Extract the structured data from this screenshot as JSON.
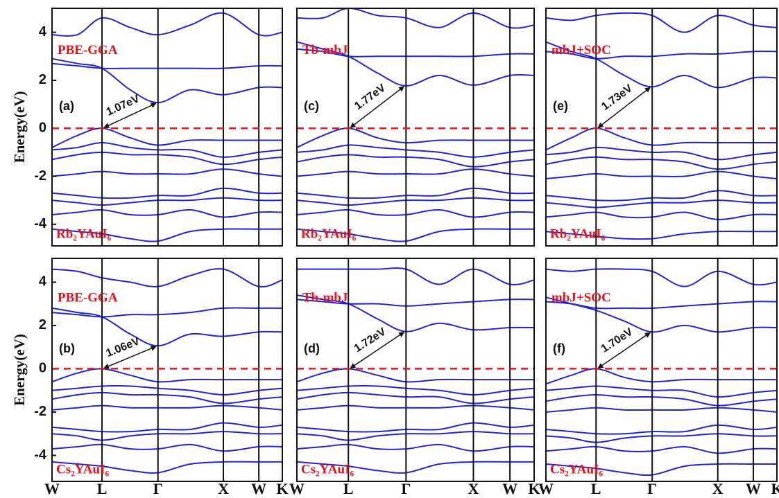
{
  "chart_data": [
    {
      "type": "line",
      "panel_label": "(a)",
      "method": "PBE-GGA",
      "compound": "Rb₂YAuI₆",
      "ylabel": "Energy(eV)",
      "gap": {
        "label": "1.07eV",
        "x0": 0.217,
        "y0": 0,
        "x1": 0.46,
        "y1": 1.07
      },
      "xlim": [
        0,
        1
      ],
      "ylim": [
        -4.9,
        5.0
      ],
      "yticks": [
        -4,
        -2,
        0,
        2,
        4
      ],
      "kpoints": [
        0.217,
        0.46,
        0.744,
        0.898
      ],
      "reference_line": {
        "value": 0,
        "color": "#e8121b"
      },
      "color": "#2323d6",
      "x": [
        0,
        0.11,
        0.217,
        0.34,
        0.46,
        0.6,
        0.744,
        0.898,
        1
      ],
      "series": [
        {
          "values": [
            2.9,
            2.7,
            2.5,
            1.6,
            1.07,
            1.6,
            1.4,
            1.7,
            1.7
          ]
        },
        {
          "values": [
            2.7,
            2.6,
            2.5,
            2.5,
            2.5,
            2.5,
            2.5,
            2.6,
            2.6
          ]
        },
        {
          "values": [
            3.9,
            3.9,
            4.6,
            4.2,
            3.9,
            4.3,
            4.8,
            3.9,
            4.0
          ]
        },
        {
          "values": [
            -0.8,
            -0.3,
            0,
            -0.4,
            -0.7,
            -0.5,
            -0.5,
            -0.5,
            -0.5
          ]
        },
        {
          "values": [
            -0.9,
            -0.8,
            -0.6,
            -0.8,
            -0.9,
            -0.9,
            -1.2,
            -1.0,
            -0.9
          ]
        },
        {
          "values": [
            -1.3,
            -1.1,
            -1.0,
            -1.1,
            -1.1,
            -1.2,
            -1.5,
            -1.3,
            -1.2
          ]
        },
        {
          "values": [
            -2.0,
            -1.9,
            -1.8,
            -1.9,
            -1.9,
            -1.9,
            -1.7,
            -1.9,
            -2.0
          ]
        },
        {
          "values": [
            -2.7,
            -2.8,
            -2.9,
            -2.9,
            -2.8,
            -2.8,
            -2.5,
            -2.7,
            -2.7
          ]
        },
        {
          "values": [
            -3.0,
            -3.1,
            -3.2,
            -3.1,
            -3.0,
            -3.0,
            -2.9,
            -3.0,
            -3.0
          ]
        },
        {
          "values": [
            -3.6,
            -3.5,
            -3.4,
            -3.6,
            -3.6,
            -3.4,
            -3.7,
            -3.5,
            -3.5
          ]
        },
        {
          "values": [
            -4.2,
            -4.3,
            -4.4,
            -4.6,
            -4.7,
            -4.3,
            -4.2,
            -4.2,
            -4.2
          ]
        }
      ]
    },
    {
      "type": "line",
      "panel_label": "(b)",
      "method": "PBE-GGA",
      "compound": "Cs₂YAuI₆",
      "ylabel": "Energy(eV)",
      "gap": {
        "label": "1.06eV",
        "x0": 0.217,
        "y0": 0,
        "x1": 0.46,
        "y1": 1.06
      },
      "xlim": [
        0,
        1
      ],
      "ylim": [
        -5.2,
        5.1
      ],
      "yticks": [
        -4,
        -2,
        0,
        2,
        4
      ],
      "xticks": [
        {
          "value": 0,
          "label": "W"
        },
        {
          "value": 0.217,
          "label": "L"
        },
        {
          "value": 0.46,
          "label": "Γ"
        },
        {
          "value": 0.744,
          "label": "X"
        },
        {
          "value": 0.898,
          "label": "W"
        },
        {
          "value": 1,
          "label": "K"
        }
      ],
      "reference_line": {
        "value": 0,
        "color": "#e8121b"
      },
      "color": "#2323d6",
      "x": [
        0,
        0.11,
        0.217,
        0.34,
        0.46,
        0.6,
        0.744,
        0.898,
        1
      ],
      "series": [
        {
          "values": [
            2.8,
            2.6,
            2.4,
            1.6,
            1.06,
            1.6,
            1.5,
            1.7,
            1.7
          ]
        },
        {
          "values": [
            2.6,
            2.5,
            2.4,
            2.5,
            2.5,
            2.6,
            2.8,
            2.8,
            2.8
          ]
        },
        {
          "values": [
            4.6,
            4.5,
            4.2,
            4.0,
            3.8,
            4.3,
            4.6,
            3.8,
            4.1
          ]
        },
        {
          "values": [
            -0.6,
            -0.2,
            0,
            -0.3,
            -0.6,
            -0.5,
            -0.5,
            -0.5,
            -0.5
          ]
        },
        {
          "values": [
            -1.0,
            -0.9,
            -0.8,
            -0.8,
            -0.9,
            -1.0,
            -1.2,
            -1.0,
            -0.9
          ]
        },
        {
          "values": [
            -1.4,
            -1.2,
            -1.1,
            -1.2,
            -1.2,
            -1.3,
            -1.6,
            -1.4,
            -1.3
          ]
        },
        {
          "values": [
            -1.9,
            -1.8,
            -1.7,
            -1.8,
            -1.8,
            -1.8,
            -1.7,
            -1.8,
            -1.9
          ]
        },
        {
          "values": [
            -2.7,
            -2.8,
            -2.9,
            -2.9,
            -2.8,
            -2.8,
            -2.5,
            -2.7,
            -2.6
          ]
        },
        {
          "values": [
            -3.0,
            -3.1,
            -3.3,
            -3.1,
            -3.0,
            -3.0,
            -2.9,
            -3.0,
            -3.0
          ]
        },
        {
          "values": [
            -3.7,
            -3.6,
            -3.5,
            -3.7,
            -3.7,
            -3.5,
            -3.8,
            -3.6,
            -3.6
          ]
        },
        {
          "values": [
            -4.3,
            -4.4,
            -4.5,
            -4.7,
            -4.8,
            -4.4,
            -4.3,
            -4.3,
            -4.3
          ]
        }
      ]
    },
    {
      "type": "line",
      "panel_label": "(c)",
      "method": "Tb-mbJ",
      "compound": "Rb₂YAuI₆",
      "gap": {
        "label": "1.77eV",
        "x0": 0.217,
        "y0": 0,
        "x1": 0.46,
        "y1": 1.77
      },
      "xlim": [
        0,
        1
      ],
      "ylim": [
        -4.9,
        5.0
      ],
      "kpoints": [
        0.217,
        0.46,
        0.744,
        0.898
      ],
      "reference_line": {
        "value": 0,
        "color": "#e8121b"
      },
      "color": "#2323d6",
      "x": [
        0,
        0.11,
        0.217,
        0.34,
        0.46,
        0.6,
        0.744,
        0.898,
        1
      ],
      "series": [
        {
          "values": [
            3.6,
            3.3,
            3.0,
            2.3,
            1.77,
            2.2,
            1.8,
            2.2,
            2.2
          ]
        },
        {
          "values": [
            3.3,
            3.2,
            3.0,
            3.0,
            3.0,
            3.0,
            3.0,
            3.1,
            3.1
          ]
        },
        {
          "values": [
            4.6,
            4.6,
            5.0,
            4.7,
            4.6,
            4.2,
            4.8,
            4.2,
            4.3
          ]
        },
        {
          "values": [
            -0.8,
            -0.3,
            0,
            -0.4,
            -0.6,
            -0.5,
            -0.5,
            -0.5,
            -0.5
          ]
        },
        {
          "values": [
            -1.0,
            -0.9,
            -0.7,
            -0.8,
            -0.9,
            -1.0,
            -1.2,
            -1.0,
            -0.9
          ]
        },
        {
          "values": [
            -1.4,
            -1.2,
            -1.1,
            -1.2,
            -1.2,
            -1.3,
            -1.6,
            -1.4,
            -1.3
          ]
        },
        {
          "values": [
            -2.0,
            -1.9,
            -1.8,
            -1.9,
            -1.9,
            -1.9,
            -1.7,
            -1.9,
            -2.0
          ]
        },
        {
          "values": [
            -2.7,
            -2.8,
            -2.9,
            -2.9,
            -2.8,
            -2.8,
            -2.5,
            -2.7,
            -2.7
          ]
        },
        {
          "values": [
            -3.0,
            -3.1,
            -3.2,
            -3.1,
            -3.0,
            -3.0,
            -2.9,
            -3.0,
            -3.0
          ]
        },
        {
          "values": [
            -3.6,
            -3.5,
            -3.4,
            -3.6,
            -3.6,
            -3.4,
            -3.7,
            -3.5,
            -3.5
          ]
        },
        {
          "values": [
            -4.2,
            -4.3,
            -4.4,
            -4.6,
            -4.7,
            -4.3,
            -4.2,
            -4.2,
            -4.2
          ]
        }
      ]
    },
    {
      "type": "line",
      "panel_label": "(d)",
      "method": "Tb-mbJ",
      "compound": "Cs₂YAuI₆",
      "gap": {
        "label": "1.72eV",
        "x0": 0.217,
        "y0": 0,
        "x1": 0.46,
        "y1": 1.72
      },
      "xlim": [
        0,
        1
      ],
      "ylim": [
        -5.2,
        5.1
      ],
      "xticks": [
        {
          "value": 0,
          "label": "W"
        },
        {
          "value": 0.217,
          "label": "L"
        },
        {
          "value": 0.46,
          "label": "Γ"
        },
        {
          "value": 0.744,
          "label": "X"
        },
        {
          "value": 0.898,
          "label": "W"
        },
        {
          "value": 1,
          "label": "K"
        }
      ],
      "reference_line": {
        "value": 0,
        "color": "#e8121b"
      },
      "color": "#2323d6",
      "x": [
        0,
        0.11,
        0.217,
        0.34,
        0.46,
        0.6,
        0.744,
        0.898,
        1
      ],
      "series": [
        {
          "values": [
            3.4,
            3.2,
            3.0,
            2.3,
            1.72,
            2.1,
            1.8,
            1.9,
            1.9
          ]
        },
        {
          "values": [
            3.2,
            3.1,
            3.0,
            3.0,
            2.9,
            3.0,
            3.1,
            3.2,
            3.2
          ]
        },
        {
          "values": [
            4.6,
            4.6,
            4.6,
            4.6,
            4.6,
            3.9,
            4.6,
            3.9,
            4.1
          ]
        },
        {
          "values": [
            -0.6,
            -0.2,
            0,
            -0.3,
            -0.6,
            -0.5,
            -0.5,
            -0.5,
            -0.5
          ]
        },
        {
          "values": [
            -1.0,
            -0.9,
            -0.8,
            -0.8,
            -0.9,
            -1.0,
            -1.2,
            -1.0,
            -0.9
          ]
        },
        {
          "values": [
            -1.4,
            -1.2,
            -1.1,
            -1.2,
            -1.3,
            -1.3,
            -1.6,
            -1.4,
            -1.3
          ]
        },
        {
          "values": [
            -1.9,
            -1.8,
            -1.7,
            -1.8,
            -1.8,
            -1.8,
            -1.7,
            -1.8,
            -1.9
          ]
        },
        {
          "values": [
            -2.7,
            -2.8,
            -2.9,
            -2.9,
            -2.8,
            -2.8,
            -2.5,
            -2.7,
            -2.6
          ]
        },
        {
          "values": [
            -3.0,
            -3.1,
            -3.3,
            -3.1,
            -3.0,
            -3.0,
            -2.9,
            -3.0,
            -3.0
          ]
        },
        {
          "values": [
            -3.7,
            -3.6,
            -3.5,
            -3.7,
            -3.7,
            -3.5,
            -3.8,
            -3.6,
            -3.6
          ]
        },
        {
          "values": [
            -4.3,
            -4.4,
            -4.5,
            -4.7,
            -4.8,
            -4.4,
            -4.3,
            -4.3,
            -4.3
          ]
        }
      ]
    },
    {
      "type": "line",
      "panel_label": "(e)",
      "method": "mbJ+SOC",
      "compound": "Rb₂YAuI₆",
      "gap": {
        "label": "1.73eV",
        "x0": 0.217,
        "y0": 0,
        "x1": 0.46,
        "y1": 1.73
      },
      "xlim": [
        0,
        1
      ],
      "ylim": [
        -4.9,
        5.0
      ],
      "kpoints": [
        0.217,
        0.46,
        0.744,
        0.898
      ],
      "reference_line": {
        "value": 0,
        "color": "#e8121b"
      },
      "color": "#2323d6",
      "x": [
        0,
        0.11,
        0.217,
        0.34,
        0.46,
        0.6,
        0.744,
        0.898,
        1
      ],
      "series": [
        {
          "values": [
            3.6,
            3.2,
            2.9,
            2.2,
            1.73,
            2.2,
            1.7,
            2.1,
            2.1
          ]
        },
        {
          "values": [
            3.2,
            3.1,
            2.9,
            3.0,
            3.0,
            3.1,
            3.1,
            3.2,
            3.2
          ]
        },
        {
          "values": [
            4.6,
            4.5,
            4.7,
            4.8,
            4.7,
            4.0,
            4.7,
            4.3,
            4.2
          ]
        },
        {
          "values": [
            -0.9,
            -0.4,
            0,
            -0.4,
            -0.7,
            -0.6,
            -0.6,
            -0.6,
            -0.6
          ]
        },
        {
          "values": [
            -1.1,
            -1.0,
            -0.8,
            -0.9,
            -1.0,
            -1.0,
            -1.3,
            -1.1,
            -1.0
          ]
        },
        {
          "values": [
            -1.5,
            -1.3,
            -1.2,
            -1.3,
            -1.3,
            -1.4,
            -1.7,
            -1.5,
            -1.4
          ]
        },
        {
          "values": [
            -2.1,
            -2.0,
            -1.9,
            -2.0,
            -2.0,
            -2.0,
            -1.8,
            -2.0,
            -2.1
          ]
        },
        {
          "values": [
            -2.8,
            -2.9,
            -3.0,
            -3.0,
            -2.9,
            -2.9,
            -2.6,
            -2.8,
            -2.8
          ]
        },
        {
          "values": [
            -3.1,
            -3.2,
            -3.3,
            -3.2,
            -3.1,
            -3.1,
            -3.0,
            -3.1,
            -3.1
          ]
        },
        {
          "values": [
            -3.7,
            -3.6,
            -3.5,
            -3.7,
            -3.7,
            -3.5,
            -3.8,
            -3.6,
            -3.6
          ]
        },
        {
          "values": [
            -4.3,
            -4.4,
            -4.5,
            -4.6,
            -4.6,
            -4.4,
            -4.3,
            -4.3,
            -4.3
          ]
        }
      ]
    },
    {
      "type": "line",
      "panel_label": "(f)",
      "method": "mbJ+SOC",
      "compound": "Cs₂YAuI₆",
      "gap": {
        "label": "1.70eV",
        "x0": 0.217,
        "y0": 0,
        "x1": 0.46,
        "y1": 1.7
      },
      "xlim": [
        0,
        1
      ],
      "ylim": [
        -5.2,
        5.1
      ],
      "xticks": [
        {
          "value": 0,
          "label": "W"
        },
        {
          "value": 0.217,
          "label": "L"
        },
        {
          "value": 0.46,
          "label": "Γ"
        },
        {
          "value": 0.744,
          "label": "X"
        },
        {
          "value": 0.898,
          "label": "W"
        },
        {
          "value": 1,
          "label": "K"
        }
      ],
      "reference_line": {
        "value": 0,
        "color": "#e8121b"
      },
      "color": "#2323d6",
      "x": [
        0,
        0.11,
        0.217,
        0.34,
        0.46,
        0.6,
        0.744,
        0.898,
        1
      ],
      "series": [
        {
          "values": [
            3.3,
            3.0,
            2.7,
            2.2,
            1.7,
            2.0,
            1.7,
            1.9,
            1.9
          ]
        },
        {
          "values": [
            3.1,
            3.0,
            2.8,
            2.8,
            2.8,
            2.9,
            3.0,
            3.1,
            3.1
          ]
        },
        {
          "values": [
            4.6,
            4.5,
            4.6,
            4.6,
            4.5,
            3.8,
            4.5,
            3.9,
            4.0
          ]
        },
        {
          "values": [
            -0.7,
            -0.3,
            0,
            -0.4,
            -0.6,
            -0.5,
            -0.5,
            -0.5,
            -0.5
          ]
        },
        {
          "values": [
            -1.0,
            -0.9,
            -0.8,
            -0.9,
            -1.0,
            -1.0,
            -1.3,
            -1.1,
            -1.0
          ]
        },
        {
          "values": [
            -1.5,
            -1.3,
            -1.2,
            -1.3,
            -1.3,
            -1.4,
            -1.7,
            -1.5,
            -1.4
          ]
        },
        {
          "values": [
            -2.0,
            -1.9,
            -1.8,
            -1.9,
            -1.9,
            -1.9,
            -1.8,
            -1.9,
            -2.0
          ]
        },
        {
          "values": [
            -2.8,
            -2.9,
            -3.0,
            -3.0,
            -2.9,
            -2.9,
            -2.6,
            -2.8,
            -2.7
          ]
        },
        {
          "values": [
            -3.1,
            -3.2,
            -3.4,
            -3.2,
            -3.1,
            -3.1,
            -3.0,
            -3.1,
            -3.1
          ]
        },
        {
          "values": [
            -3.8,
            -3.7,
            -3.6,
            -3.8,
            -3.8,
            -3.6,
            -3.9,
            -3.7,
            -3.7
          ]
        },
        {
          "values": [
            -4.4,
            -4.5,
            -4.6,
            -4.8,
            -4.9,
            -4.5,
            -4.4,
            -4.4,
            -4.4
          ]
        }
      ]
    }
  ]
}
